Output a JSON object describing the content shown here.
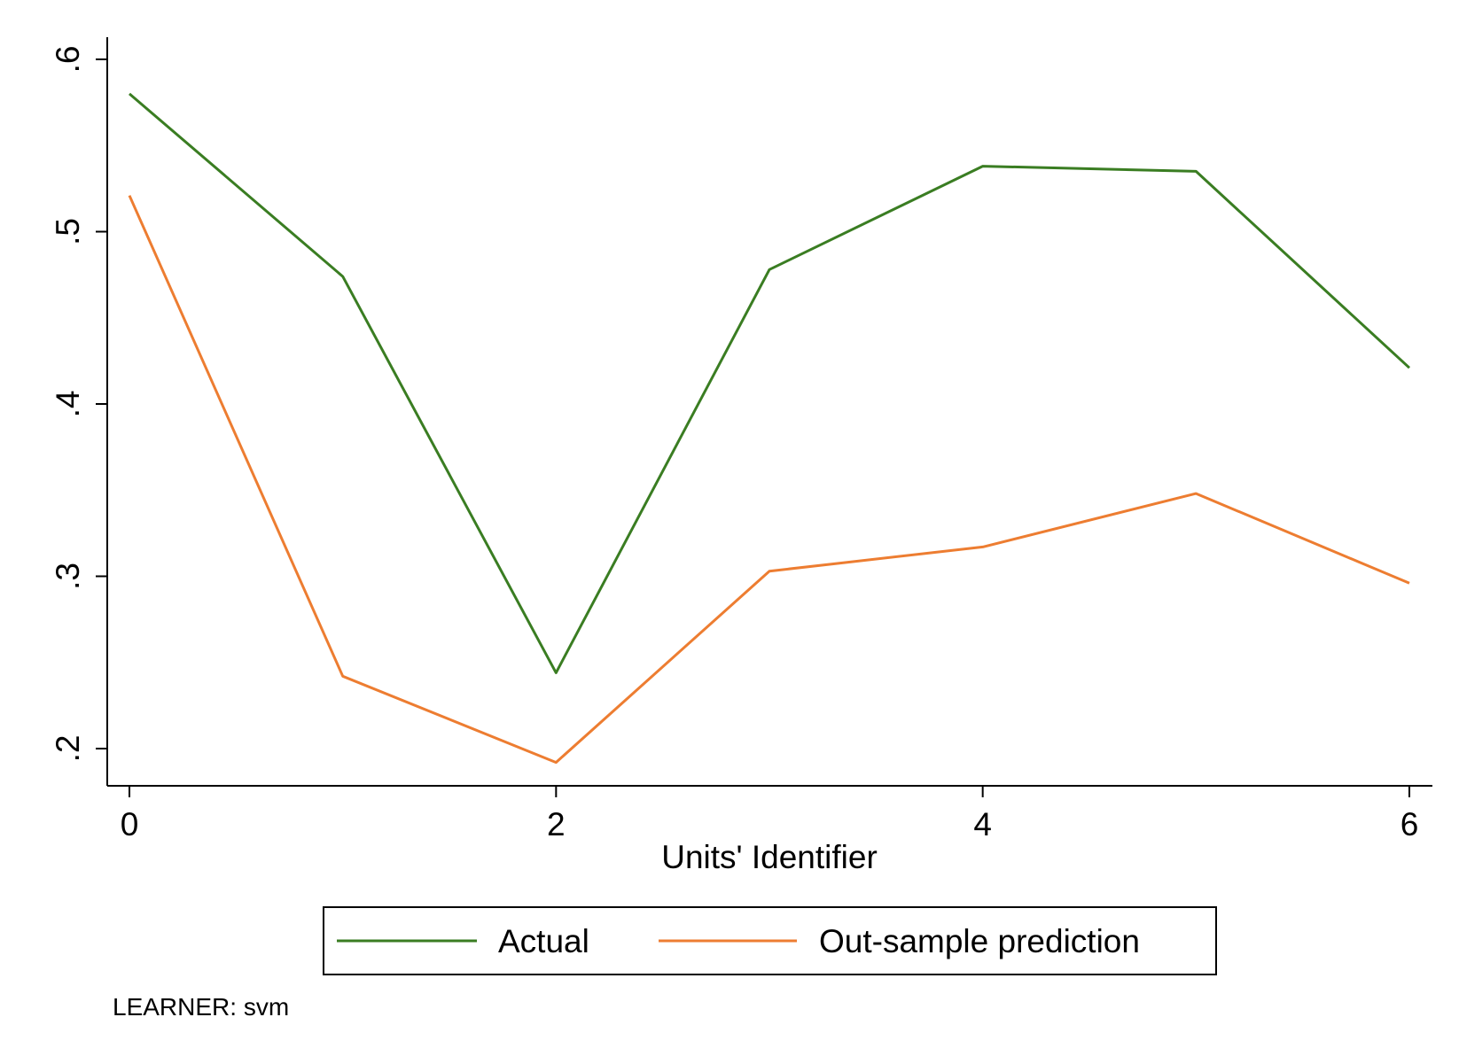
{
  "chart_data": {
    "type": "line",
    "title": "",
    "xlabel": "Units' Identifier",
    "ylabel": "",
    "x": [
      0,
      1,
      2,
      3,
      4,
      5,
      6
    ],
    "xlim": [
      0,
      6
    ],
    "ylim": [
      0.2,
      0.6
    ],
    "x_ticks": [
      0,
      2,
      4,
      6
    ],
    "x_tick_labels": [
      "0",
      "2",
      "4",
      "6"
    ],
    "y_ticks": [
      0.2,
      0.3,
      0.4,
      0.5,
      0.6
    ],
    "y_tick_labels": [
      ".2",
      ".3",
      ".4",
      ".5",
      ".6"
    ],
    "grid": false,
    "legend_position": "bottom",
    "series": [
      {
        "name": "Actual",
        "color": "#3a7d22",
        "values": [
          0.58,
          0.474,
          0.244,
          0.478,
          0.538,
          0.535,
          0.421
        ]
      },
      {
        "name": "Out-sample prediction",
        "color": "#ed7d31",
        "values": [
          0.521,
          0.242,
          0.192,
          0.303,
          0.317,
          0.348,
          0.296
        ]
      }
    ],
    "note": "LEARNER: svm"
  }
}
